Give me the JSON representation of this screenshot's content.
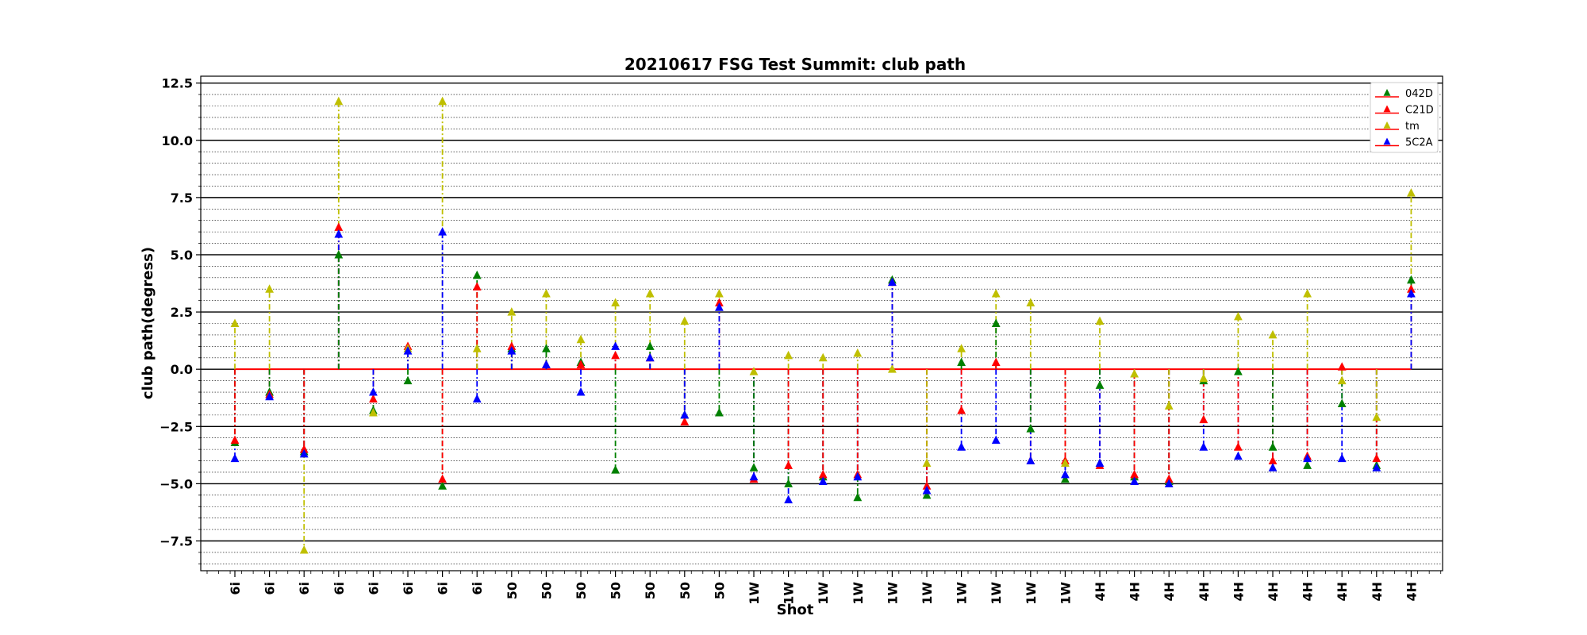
{
  "chart_data": {
    "type": "scatter",
    "title": "20210617 FSG Test Summit: club path",
    "xlabel": "Shot",
    "ylabel": "club path(degress)",
    "ylim": [
      -8.8,
      12.8
    ],
    "yticks": [
      -7.5,
      -5.0,
      -2.5,
      0.0,
      2.5,
      5.0,
      7.5,
      10.0,
      12.5
    ],
    "ytick_labels": [
      "−7.5",
      "−5.0",
      "−2.5",
      "0.0",
      "2.5",
      "5.0",
      "7.5",
      "10.0",
      "12.5"
    ],
    "major_grid_step": 2.5,
    "minor_grid_step": 0.5,
    "grid": true,
    "legend_position": "top-right",
    "baseline": 0,
    "categories": [
      "6i",
      "6i",
      "6i",
      "6i",
      "6i",
      "6i",
      "6i",
      "6i",
      "50",
      "50",
      "50",
      "50",
      "50",
      "50",
      "50",
      "1W",
      "1W",
      "1W",
      "1W",
      "1W",
      "1W",
      "1W",
      "1W",
      "1W",
      "1W",
      "4H",
      "4H",
      "4H",
      "4H",
      "4H",
      "4H",
      "4H",
      "4H",
      "4H",
      "4H"
    ],
    "series": [
      {
        "name": "042D",
        "color": "#008000",
        "marker": "triangle",
        "line_color": "#ff0000",
        "values": [
          -3.2,
          -1.0,
          -3.6,
          5.0,
          -1.8,
          -0.5,
          -5.1,
          4.1,
          0.9,
          0.9,
          0.3,
          -4.4,
          1.0,
          -2.0,
          -1.9,
          -4.3,
          -5.0,
          -4.7,
          -5.6,
          3.9,
          -5.5,
          0.3,
          2.0,
          -2.6,
          -4.8,
          -0.7,
          -4.7,
          -4.9,
          -0.5,
          -0.1,
          -3.4,
          -4.2,
          -1.5,
          -4.2,
          3.9
        ]
      },
      {
        "name": "C21D",
        "color": "#ff0000",
        "marker": "triangle",
        "line_color": "#ff0000",
        "values": [
          -3.1,
          -1.1,
          -3.5,
          6.2,
          -1.3,
          1.0,
          -4.8,
          3.6,
          1.0,
          0.2,
          0.2,
          0.6,
          0.5,
          -2.3,
          2.9,
          -4.8,
          -4.2,
          -4.6,
          -4.6,
          3.8,
          -5.1,
          -1.8,
          0.3,
          -4.0,
          -4.0,
          -4.2,
          -4.6,
          -4.8,
          -2.2,
          -3.4,
          -4.0,
          -3.8,
          0.1,
          -3.9,
          3.5
        ]
      },
      {
        "name": "tm",
        "color": "#bfbf00",
        "marker": "triangle",
        "line_color": "#ff0000",
        "values": [
          2.0,
          3.5,
          -7.9,
          11.7,
          -1.9,
          0.9,
          11.7,
          0.9,
          2.5,
          3.3,
          1.3,
          2.9,
          3.3,
          2.1,
          3.3,
          -0.1,
          0.6,
          0.5,
          0.7,
          0.0,
          -4.1,
          0.9,
          3.3,
          2.9,
          -4.1,
          2.1,
          -0.2,
          -1.6,
          -0.4,
          2.3,
          1.5,
          3.3,
          -0.5,
          -2.1,
          7.7
        ]
      },
      {
        "name": "5C2A",
        "color": "#0000ff",
        "marker": "triangle",
        "line_color": "#ff0000",
        "values": [
          -3.9,
          -1.2,
          -3.7,
          5.9,
          -1.0,
          0.8,
          6.0,
          -1.3,
          0.8,
          0.2,
          -1.0,
          1.0,
          0.5,
          -2.0,
          2.7,
          -4.7,
          -5.7,
          -4.9,
          -4.7,
          3.8,
          -5.3,
          -3.4,
          -3.1,
          -4.0,
          -4.6,
          -4.1,
          -4.9,
          -5.0,
          -3.4,
          -3.8,
          -4.3,
          -3.9,
          -3.9,
          -4.3,
          3.3
        ]
      }
    ]
  }
}
